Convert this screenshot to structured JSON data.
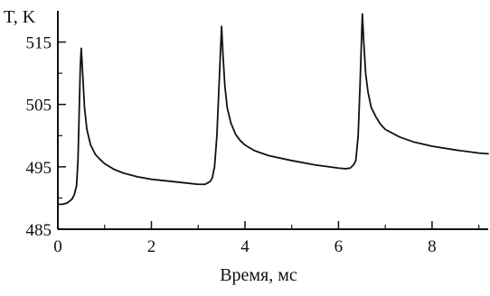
{
  "chart_data": {
    "type": "line",
    "title": "",
    "xlabel": "Время, мс",
    "ylabel": "T, K",
    "xlim": [
      0,
      9.2
    ],
    "ylim": [
      485,
      520
    ],
    "xticks": [
      0,
      2,
      4,
      6,
      8
    ],
    "yticks": [
      485,
      495,
      505,
      515
    ],
    "grid": false,
    "legend": "none",
    "colors": {
      "line": "#111111",
      "axis": "#111111"
    },
    "series": [
      {
        "x": [
          0.0,
          0.1,
          0.2,
          0.3,
          0.35,
          0.4,
          0.43,
          0.46,
          0.48,
          0.5,
          0.53,
          0.57,
          0.62,
          0.7,
          0.8,
          0.9,
          1.0,
          1.2,
          1.4,
          1.7,
          2.0,
          2.5,
          3.0,
          3.15,
          3.25,
          3.3,
          3.35,
          3.4,
          3.44,
          3.48,
          3.5,
          3.53,
          3.57,
          3.62,
          3.7,
          3.8,
          3.9,
          4.0,
          4.2,
          4.5,
          5.0,
          5.5,
          6.0,
          6.15,
          6.25,
          6.32,
          6.37,
          6.42,
          6.46,
          6.49,
          6.51,
          6.54,
          6.58,
          6.63,
          6.7,
          6.8,
          6.9,
          7.0,
          7.3,
          7.6,
          8.0,
          8.5,
          9.0,
          9.2
        ],
        "y": [
          489.0,
          489.0,
          489.2,
          489.8,
          490.5,
          492.0,
          496.0,
          505.0,
          511.0,
          514.0,
          510.0,
          504.5,
          501.0,
          498.5,
          497.0,
          496.2,
          495.5,
          494.6,
          494.0,
          493.4,
          493.0,
          492.6,
          492.2,
          492.2,
          492.6,
          493.2,
          495.0,
          500.0,
          507.0,
          514.0,
          517.5,
          513.0,
          508.0,
          504.5,
          502.0,
          500.2,
          499.2,
          498.5,
          497.6,
          496.8,
          496.0,
          495.3,
          494.8,
          494.7,
          494.8,
          495.3,
          496.0,
          500.0,
          508.0,
          515.0,
          519.5,
          515.0,
          510.0,
          507.0,
          504.5,
          503.0,
          501.8,
          501.0,
          499.8,
          499.0,
          498.3,
          497.7,
          497.2,
          497.1
        ]
      }
    ]
  }
}
